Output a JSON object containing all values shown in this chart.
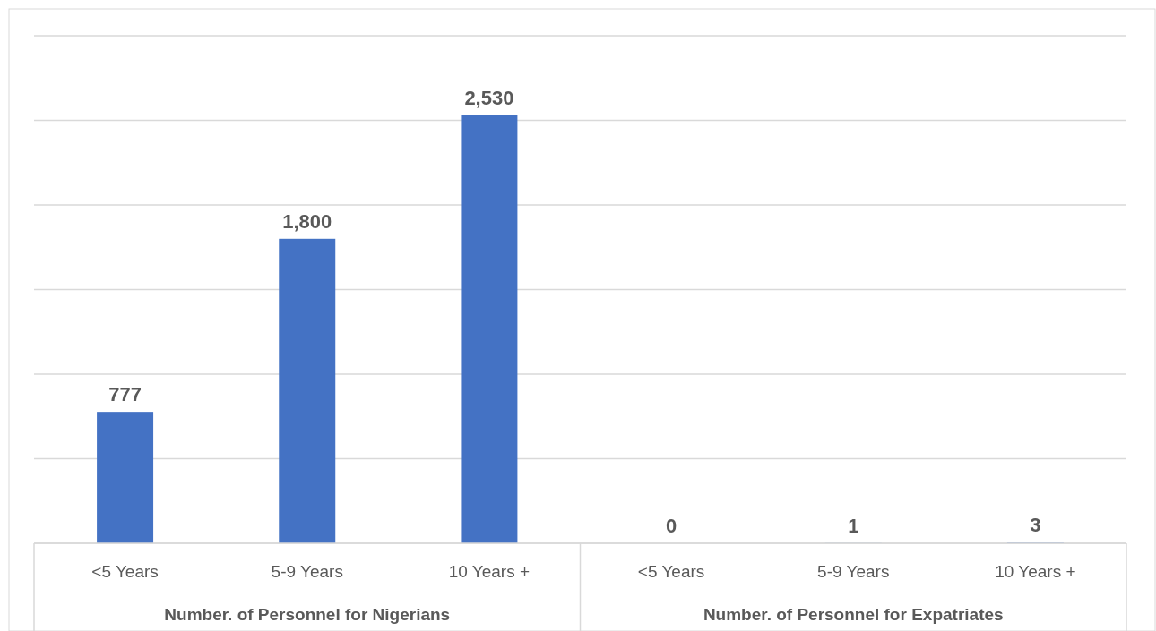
{
  "chart_data": {
    "type": "bar",
    "categories": [
      "<5 Years",
      "5-9 Years",
      "10 Years +",
      "<5 Years",
      "5-9 Years",
      "10 Years +"
    ],
    "values": [
      777,
      1800,
      2530,
      0,
      1,
      3
    ],
    "color": "#4472c4",
    "value_labels": [
      "777",
      "1,800",
      "2,530",
      "0",
      "1",
      "3"
    ],
    "ylim": [
      0,
      3000
    ],
    "yticks": [
      {
        "value": 0,
        "label": null
      },
      {
        "value": 500,
        "label": null
      },
      {
        "value": 1000,
        "label": null
      },
      {
        "value": 1500,
        "label": null
      },
      {
        "value": 2000,
        "label": null
      },
      {
        "value": 2500,
        "label": null
      },
      {
        "value": 3000,
        "label": null
      }
    ],
    "grid": "y",
    "tick_labels": "x",
    "annotations": [
      "Number. of Personnel for Nigerians",
      "Number. of Personnel for Expatriates"
    ]
  }
}
